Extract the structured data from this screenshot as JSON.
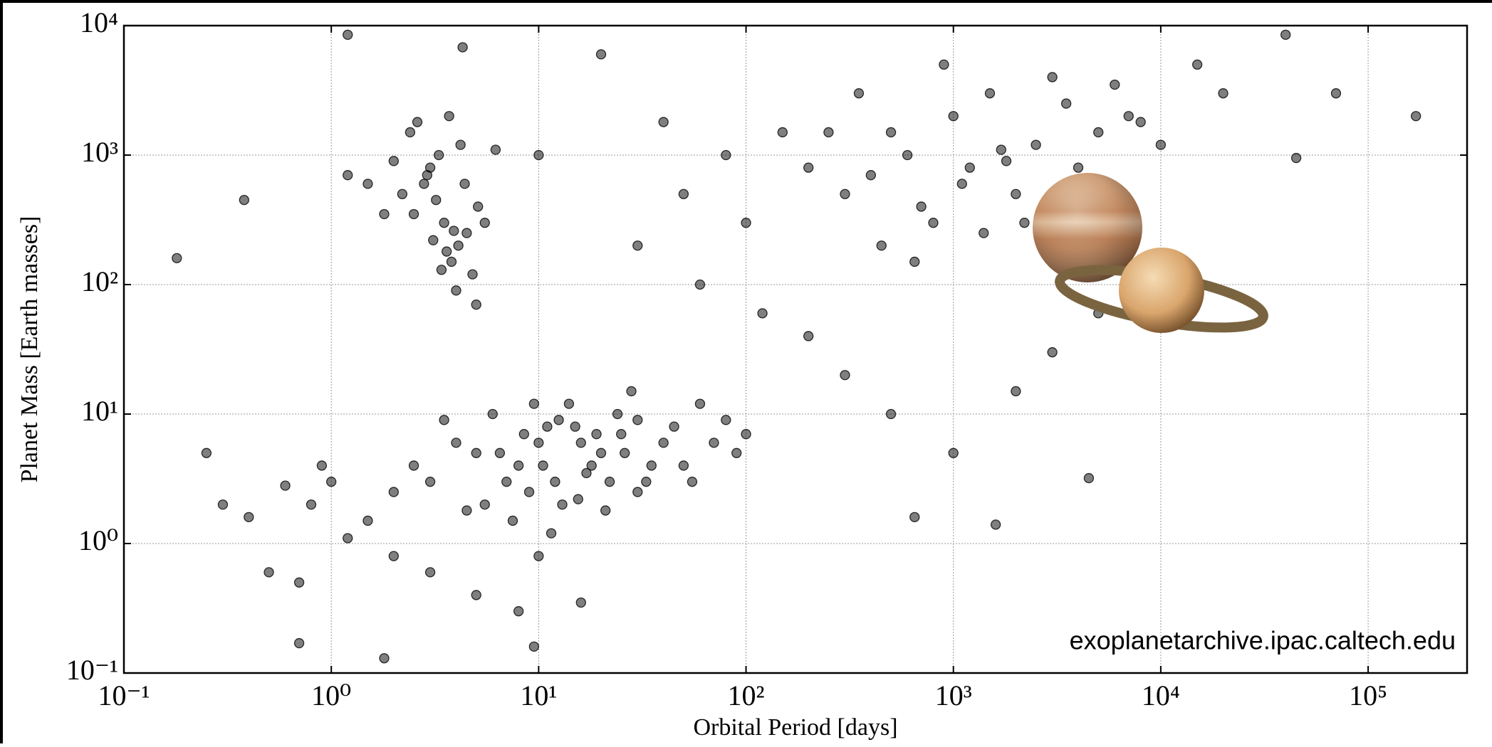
{
  "chart_data": {
    "type": "scatter",
    "x_label": "Orbital Period [days]",
    "y_label": "Planet Mass [Earth masses]",
    "annotation": "exoplanetarchive.ipac.caltech.edu",
    "xscale": "log",
    "yscale": "log",
    "grid": true,
    "xlim": [
      0.1,
      300000
    ],
    "ylim": [
      0.1,
      10000
    ],
    "xticks": [
      {
        "value": 0.1,
        "label": "10⁻¹"
      },
      {
        "value": 1,
        "label": "10⁰"
      },
      {
        "value": 10,
        "label": "10¹"
      },
      {
        "value": 100,
        "label": "10²"
      },
      {
        "value": 1000,
        "label": "10³"
      },
      {
        "value": 10000,
        "label": "10⁴"
      },
      {
        "value": 100000,
        "label": "10⁵"
      }
    ],
    "yticks": [
      {
        "value": 0.1,
        "label": "10⁻¹"
      },
      {
        "value": 1,
        "label": "10⁰"
      },
      {
        "value": 10,
        "label": "10¹"
      },
      {
        "value": 100,
        "label": "10²"
      },
      {
        "value": 1000,
        "label": "10³"
      },
      {
        "value": 10000,
        "label": "10⁴"
      }
    ],
    "color": "#000000",
    "x": [
      3.2,
      3.5,
      2.8,
      4.1,
      3.0,
      2.5,
      3.8,
      4.5,
      3.3,
      2.2,
      5.1,
      3.6,
      4.8,
      2.9,
      3.1,
      4.2,
      1.5,
      1.2,
      2.0,
      3.4,
      4.0,
      5.5,
      6.2,
      2.4,
      3.7,
      1.8,
      4.4,
      3.9,
      2.6,
      5.0,
      5,
      8,
      10,
      12,
      15,
      20,
      6,
      9,
      14,
      18,
      25,
      30,
      40,
      7,
      11,
      13,
      16,
      22,
      28,
      35,
      4,
      3,
      5.5,
      8.5,
      10.5,
      12.5,
      17,
      24,
      45,
      60,
      80,
      100,
      3.5,
      6.5,
      9.5,
      19,
      26,
      33,
      50,
      70,
      2.5,
      2,
      4.5,
      7.5,
      11.5,
      15.5,
      21,
      30,
      55,
      90,
      1.0,
      0.8,
      0.6,
      1.5,
      0.5,
      0.7,
      2,
      3,
      5,
      8,
      10,
      1.2,
      0.9,
      0.4,
      0.3,
      1.8,
      9.5,
      0.25,
      0.7,
      16,
      400,
      500,
      700,
      1000,
      1200,
      1500,
      2000,
      2500,
      3000,
      800,
      600,
      900,
      1100,
      1800,
      3500,
      5000,
      7000,
      10000,
      300,
      350,
      450,
      650,
      1400,
      2200,
      4000,
      6000,
      8000,
      15000,
      20000,
      40000,
      70000,
      170000,
      45000,
      250,
      1700,
      50,
      100,
      150,
      200,
      80,
      30,
      60,
      120,
      200,
      300,
      500,
      1000,
      2000,
      3000,
      5000,
      1600,
      4500,
      650,
      40,
      20,
      10,
      1.2,
      0.18,
      0.38,
      4.3
    ],
    "values": [
      450,
      300,
      600,
      200,
      800,
      350,
      150,
      250,
      1000,
      500,
      400,
      180,
      120,
      700,
      220,
      1200,
      600,
      700,
      900,
      130,
      90,
      300,
      1100,
      1500,
      2000,
      350,
      600,
      260,
      1800,
      70,
      5,
      4,
      6,
      3,
      8,
      5,
      10,
      2.5,
      12,
      4,
      7,
      9,
      6,
      3,
      8,
      2,
      6,
      3,
      15,
      4,
      6,
      3,
      2,
      7,
      4,
      9,
      3.5,
      10,
      8,
      12,
      9,
      7,
      9,
      5,
      12,
      7,
      5,
      3,
      4,
      6,
      4,
      2.5,
      1.8,
      1.5,
      1.2,
      2.2,
      1.8,
      2.5,
      3,
      5,
      3,
      2,
      2.8,
      1.5,
      0.6,
      0.5,
      0.8,
      0.6,
      0.4,
      0.3,
      0.8,
      1.1,
      4,
      1.6,
      2,
      0.13,
      0.16,
      5,
      0.17,
      0.35,
      700,
      1500,
      400,
      2000,
      800,
      3000,
      500,
      1200,
      4000,
      300,
      1000,
      5000,
      600,
      900,
      2500,
      1500,
      2000,
      1200,
      500,
      3000,
      200,
      150,
      250,
      300,
      800,
      3500,
      1800,
      5000,
      3000,
      8500,
      3000,
      2000,
      950,
      1500,
      1100,
      500,
      300,
      1500,
      800,
      1000,
      200,
      100,
      60,
      40,
      20,
      10,
      5,
      15,
      30,
      60,
      1.4,
      3.2,
      1.6,
      1800,
      6000,
      1000,
      8500,
      160,
      450,
      6800
    ]
  }
}
